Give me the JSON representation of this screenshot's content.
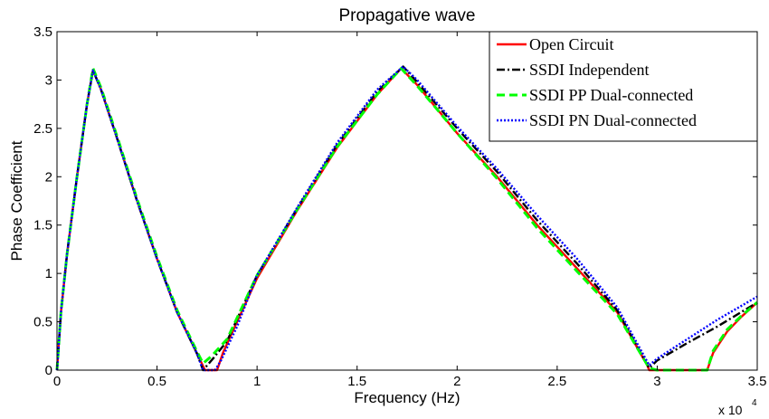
{
  "chart_data": {
    "type": "line",
    "title": "Propagative wave",
    "xlabel": "Frequency (Hz)",
    "ylabel": "Phase Coefficient",
    "x_multiplier_label": "x 10",
    "x_multiplier_exponent": "4",
    "xlim": [
      0,
      35000
    ],
    "ylim": [
      0,
      3.5
    ],
    "x_ticks": [
      0,
      5000,
      10000,
      15000,
      20000,
      25000,
      30000,
      35000
    ],
    "x_tick_labels": [
      "0",
      "0.5",
      "1",
      "1.5",
      "2",
      "2.5",
      "3",
      "3.5"
    ],
    "y_ticks": [
      0,
      0.5,
      1,
      1.5,
      2,
      2.5,
      3,
      3.5
    ],
    "y_tick_labels": [
      "0",
      "0.5",
      "1",
      "1.5",
      "2",
      "2.5",
      "3",
      "3.5"
    ],
    "grid": false,
    "legend_position": "top-right",
    "series": [
      {
        "name": "Open Circuit",
        "color": "#ff0000",
        "dash": "solid",
        "points": [
          [
            0,
            0
          ],
          [
            200,
            0.6
          ],
          [
            500,
            1.2
          ],
          [
            1000,
            2.0
          ],
          [
            1500,
            2.75
          ],
          [
            1800,
            3.1
          ],
          [
            2200,
            2.9
          ],
          [
            3000,
            2.4
          ],
          [
            4000,
            1.75
          ],
          [
            5000,
            1.15
          ],
          [
            6000,
            0.6
          ],
          [
            7000,
            0.17
          ],
          [
            7400,
            0
          ],
          [
            8000,
            0
          ],
          [
            8300,
            0.18
          ],
          [
            9000,
            0.5
          ],
          [
            10000,
            0.95
          ],
          [
            12000,
            1.65
          ],
          [
            14000,
            2.3
          ],
          [
            16000,
            2.85
          ],
          [
            17200,
            3.12
          ],
          [
            18000,
            2.95
          ],
          [
            20000,
            2.45
          ],
          [
            22000,
            2.0
          ],
          [
            24000,
            1.5
          ],
          [
            26000,
            1.05
          ],
          [
            28000,
            0.6
          ],
          [
            29500,
            0.05
          ],
          [
            29600,
            0
          ],
          [
            32500,
            0
          ],
          [
            32800,
            0.18
          ],
          [
            33500,
            0.4
          ],
          [
            34200,
            0.55
          ],
          [
            35000,
            0.7
          ]
        ]
      },
      {
        "name": "SSDI Independent",
        "color": "#000000",
        "dash": "dashdot",
        "points": [
          [
            0,
            0
          ],
          [
            200,
            0.6
          ],
          [
            500,
            1.2
          ],
          [
            1000,
            2.0
          ],
          [
            1500,
            2.75
          ],
          [
            1800,
            3.1
          ],
          [
            2200,
            2.9
          ],
          [
            3000,
            2.4
          ],
          [
            4000,
            1.75
          ],
          [
            5000,
            1.15
          ],
          [
            6000,
            0.6
          ],
          [
            7000,
            0.17
          ],
          [
            7300,
            0
          ],
          [
            7800,
            0.12
          ],
          [
            8500,
            0.3
          ],
          [
            10000,
            0.98
          ],
          [
            12000,
            1.67
          ],
          [
            14000,
            2.33
          ],
          [
            16000,
            2.88
          ],
          [
            17300,
            3.14
          ],
          [
            18000,
            2.98
          ],
          [
            20000,
            2.5
          ],
          [
            22000,
            2.05
          ],
          [
            24000,
            1.55
          ],
          [
            26000,
            1.1
          ],
          [
            28000,
            0.62
          ],
          [
            29600,
            0.02
          ],
          [
            30000,
            0.1
          ],
          [
            31500,
            0.28
          ],
          [
            33000,
            0.45
          ],
          [
            35000,
            0.7
          ]
        ]
      },
      {
        "name": "SSDI PP Dual-connected",
        "color": "#00ff00",
        "dash": "dash",
        "points": [
          [
            0,
            0
          ],
          [
            200,
            0.6
          ],
          [
            500,
            1.2
          ],
          [
            1000,
            2.0
          ],
          [
            1500,
            2.75
          ],
          [
            1800,
            3.12
          ],
          [
            2200,
            2.92
          ],
          [
            3000,
            2.42
          ],
          [
            4000,
            1.77
          ],
          [
            5000,
            1.17
          ],
          [
            6000,
            0.62
          ],
          [
            7000,
            0.19
          ],
          [
            7300,
            0.07
          ],
          [
            7700,
            0.14
          ],
          [
            8500,
            0.32
          ],
          [
            10000,
            0.98
          ],
          [
            12000,
            1.66
          ],
          [
            14000,
            2.31
          ],
          [
            16000,
            2.85
          ],
          [
            17200,
            3.12
          ],
          [
            18000,
            2.94
          ],
          [
            20000,
            2.45
          ],
          [
            22000,
            1.98
          ],
          [
            24000,
            1.47
          ],
          [
            26000,
            1.02
          ],
          [
            28000,
            0.58
          ],
          [
            29600,
            0.02
          ],
          [
            30000,
            0
          ],
          [
            32500,
            0
          ],
          [
            32800,
            0.2
          ],
          [
            33500,
            0.42
          ],
          [
            34200,
            0.56
          ],
          [
            35000,
            0.7
          ]
        ]
      },
      {
        "name": "SSDI PN Dual-connected",
        "color": "#0000ff",
        "dash": "dot",
        "points": [
          [
            0,
            0
          ],
          [
            200,
            0.6
          ],
          [
            500,
            1.2
          ],
          [
            1000,
            2.0
          ],
          [
            1500,
            2.75
          ],
          [
            1800,
            3.1
          ],
          [
            2200,
            2.9
          ],
          [
            3000,
            2.4
          ],
          [
            4000,
            1.75
          ],
          [
            5000,
            1.15
          ],
          [
            6000,
            0.6
          ],
          [
            7000,
            0.17
          ],
          [
            7300,
            0
          ],
          [
            7900,
            0
          ],
          [
            8200,
            0.1
          ],
          [
            9000,
            0.45
          ],
          [
            10000,
            0.98
          ],
          [
            12000,
            1.68
          ],
          [
            14000,
            2.35
          ],
          [
            16000,
            2.9
          ],
          [
            17300,
            3.14
          ],
          [
            18000,
            3.0
          ],
          [
            20000,
            2.52
          ],
          [
            22000,
            2.08
          ],
          [
            24000,
            1.6
          ],
          [
            26000,
            1.15
          ],
          [
            28000,
            0.65
          ],
          [
            29600,
            0.05
          ],
          [
            30000,
            0.12
          ],
          [
            31500,
            0.32
          ],
          [
            33000,
            0.52
          ],
          [
            35000,
            0.76
          ]
        ]
      }
    ]
  }
}
